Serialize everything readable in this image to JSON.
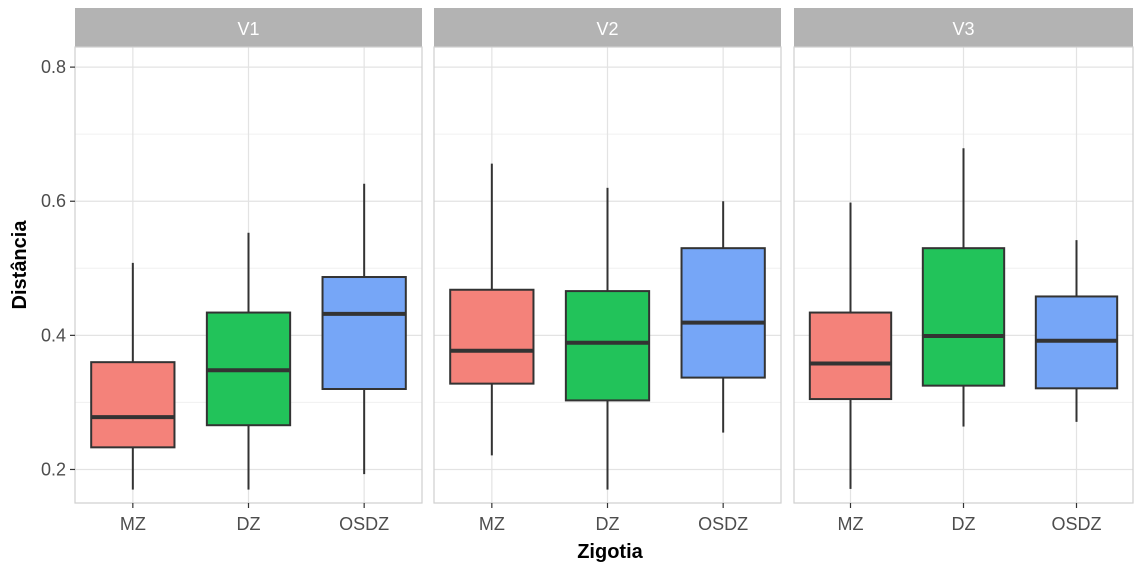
{
  "chart_data": {
    "type": "boxplot",
    "xlabel": "Zigotia",
    "ylabel": "Distância",
    "ylim": [
      0.15,
      0.83
    ],
    "yticks": [
      0.2,
      0.4,
      0.6,
      0.8
    ],
    "ytick_labels": [
      "0.2",
      "0.4",
      "0.6",
      "0.8"
    ],
    "categories": [
      "MZ",
      "DZ",
      "OSDZ"
    ],
    "colors": {
      "MZ": "#f4827a",
      "DZ": "#22c35a",
      "OSDZ": "#76a6f7"
    },
    "grid": true,
    "panels": [
      {
        "name": "V1",
        "boxes": [
          {
            "category": "MZ",
            "min": 0.17,
            "q1": 0.233,
            "median": 0.278,
            "q3": 0.36,
            "max": 0.508
          },
          {
            "category": "DZ",
            "min": 0.17,
            "q1": 0.266,
            "median": 0.348,
            "q3": 0.434,
            "max": 0.553
          },
          {
            "category": "OSDZ",
            "min": 0.193,
            "q1": 0.32,
            "median": 0.432,
            "q3": 0.487,
            "max": 0.626
          }
        ]
      },
      {
        "name": "V2",
        "boxes": [
          {
            "category": "MZ",
            "min": 0.221,
            "q1": 0.328,
            "median": 0.377,
            "q3": 0.468,
            "max": 0.656
          },
          {
            "category": "DZ",
            "min": 0.17,
            "q1": 0.303,
            "median": 0.389,
            "q3": 0.466,
            "max": 0.62
          },
          {
            "category": "OSDZ",
            "min": 0.255,
            "q1": 0.337,
            "median": 0.419,
            "q3": 0.53,
            "max": 0.6
          }
        ]
      },
      {
        "name": "V3",
        "boxes": [
          {
            "category": "MZ",
            "min": 0.171,
            "q1": 0.305,
            "median": 0.358,
            "q3": 0.434,
            "max": 0.598
          },
          {
            "category": "DZ",
            "min": 0.264,
            "q1": 0.325,
            "median": 0.399,
            "q3": 0.53,
            "max": 0.679
          },
          {
            "category": "OSDZ",
            "min": 0.271,
            "q1": 0.321,
            "median": 0.392,
            "q3": 0.458,
            "max": 0.542
          }
        ]
      }
    ]
  }
}
